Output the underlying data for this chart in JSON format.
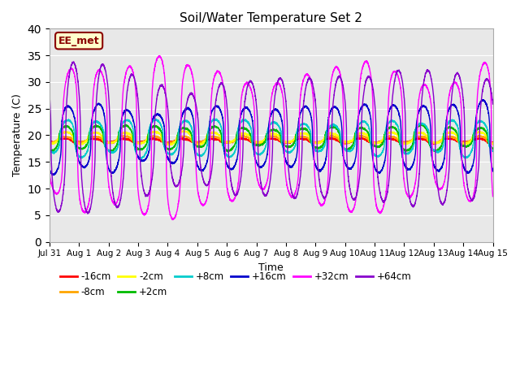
{
  "title": "Soil/Water Temperature Set 2",
  "xlabel": "Time",
  "ylabel": "Temperature (C)",
  "ylim": [
    0,
    40
  ],
  "annotation_text": "EE_met",
  "annotation_bg": "#FFFFCC",
  "annotation_border": "#8B0000",
  "plot_bg": "#E8E8E8",
  "fig_bg": "#FFFFFF",
  "series": [
    {
      "label": "-16cm",
      "color": "#FF0000"
    },
    {
      "label": "-8cm",
      "color": "#FFA500"
    },
    {
      "label": "-2cm",
      "color": "#FFFF00"
    },
    {
      "label": "+2cm",
      "color": "#00BB00"
    },
    {
      "label": "+8cm",
      "color": "#00CCCC"
    },
    {
      "label": "+16cm",
      "color": "#0000CC"
    },
    {
      "label": "+32cm",
      "color": "#FF00FF"
    },
    {
      "label": "+64cm",
      "color": "#8800CC"
    }
  ],
  "tick_labels": [
    "Jul 31",
    "Aug 1",
    "Aug 2",
    "Aug 3",
    "Aug 4",
    "Aug 5",
    "Aug 6",
    "Aug 7",
    "Aug 8",
    "Aug 9",
    "Aug 10",
    "Aug 11",
    "Aug 12",
    "Aug 13",
    "Aug 14",
    "Aug 15"
  ],
  "tick_positions": [
    0,
    1,
    2,
    3,
    4,
    5,
    6,
    7,
    8,
    9,
    10,
    11,
    12,
    13,
    14,
    15
  ],
  "yticks": [
    0,
    5,
    10,
    15,
    20,
    25,
    30,
    35,
    40
  ]
}
